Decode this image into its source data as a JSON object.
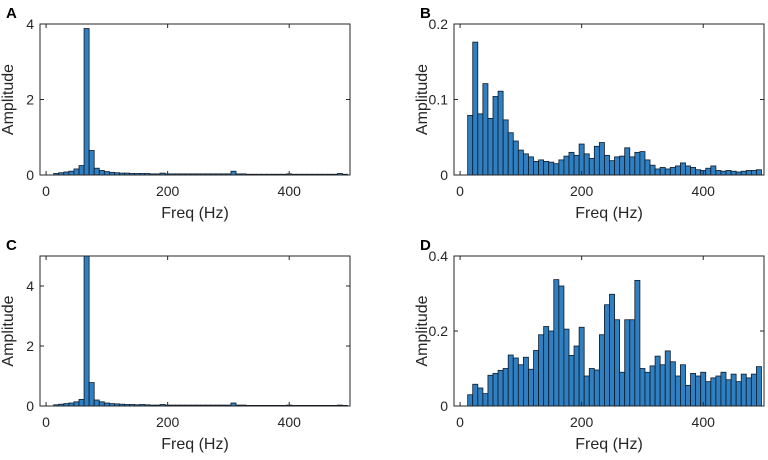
{
  "colors": {
    "bar_fill": "#2f7fc1",
    "bar_edge": "#0d1b2a",
    "axis": "#262626"
  },
  "chart_data": [
    {
      "panel": "A",
      "type": "bar",
      "xlabel": "Freq (Hz)",
      "ylabel": "Amplitude",
      "xlim": [
        -10,
        500
      ],
      "ylim": [
        0,
        4
      ],
      "xticks": [
        0,
        200,
        400
      ],
      "yticks": [
        0,
        2,
        4
      ],
      "bin_width": 8.33,
      "x": [
        16.67,
        25,
        33.33,
        41.67,
        50,
        58.33,
        66.67,
        75,
        83.33,
        91.67,
        100,
        108.33,
        116.67,
        125,
        133.33,
        141.67,
        150,
        158.33,
        166.67,
        175,
        183.33,
        191.67,
        200,
        208.33,
        216.67,
        225,
        233.33,
        241.67,
        250,
        258.33,
        266.67,
        275,
        283.33,
        291.67,
        300,
        308.33,
        316.67,
        325,
        333.33,
        341.67,
        350,
        358.33,
        366.67,
        375,
        383.33,
        391.67,
        400,
        408.33,
        416.67,
        425,
        433.33,
        441.67,
        450,
        458.33,
        466.67,
        475,
        483.33,
        491.67
      ],
      "values": [
        0.04,
        0.06,
        0.08,
        0.1,
        0.16,
        0.25,
        3.88,
        0.65,
        0.18,
        0.12,
        0.09,
        0.07,
        0.06,
        0.05,
        0.05,
        0.04,
        0.04,
        0.04,
        0.04,
        0.03,
        0.03,
        0.05,
        0.03,
        0.03,
        0.03,
        0.03,
        0.03,
        0.03,
        0.03,
        0.03,
        0.03,
        0.03,
        0.03,
        0.03,
        0.03,
        0.1,
        0.03,
        0.03,
        0.02,
        0.02,
        0.02,
        0.02,
        0.02,
        0.02,
        0.02,
        0.02,
        0.03,
        0.02,
        0.02,
        0.02,
        0.02,
        0.02,
        0.02,
        0.02,
        0.02,
        0.02,
        0.04,
        0.02
      ]
    },
    {
      "panel": "B",
      "type": "bar",
      "xlabel": "Freq (Hz)",
      "ylabel": "Amplitude",
      "xlim": [
        -10,
        500
      ],
      "ylim": [
        0,
        0.2
      ],
      "xticks": [
        0,
        200,
        400
      ],
      "yticks": [
        0,
        0.1,
        0.2
      ],
      "bin_width": 8.33,
      "x": [
        16.67,
        25,
        33.33,
        41.67,
        50,
        58.33,
        66.67,
        75,
        83.33,
        91.67,
        100,
        108.33,
        116.67,
        125,
        133.33,
        141.67,
        150,
        158.33,
        166.67,
        175,
        183.33,
        191.67,
        200,
        208.33,
        216.67,
        225,
        233.33,
        241.67,
        250,
        258.33,
        266.67,
        275,
        283.33,
        291.67,
        300,
        308.33,
        316.67,
        325,
        333.33,
        341.67,
        350,
        358.33,
        366.67,
        375,
        383.33,
        391.67,
        400,
        408.33,
        416.67,
        425,
        433.33,
        441.67,
        450,
        458.33,
        466.67,
        475,
        483.33,
        491.67
      ],
      "values": [
        0.079,
        0.176,
        0.081,
        0.121,
        0.075,
        0.104,
        0.111,
        0.073,
        0.056,
        0.045,
        0.033,
        0.028,
        0.024,
        0.018,
        0.02,
        0.018,
        0.017,
        0.015,
        0.02,
        0.025,
        0.03,
        0.026,
        0.041,
        0.028,
        0.022,
        0.038,
        0.043,
        0.026,
        0.019,
        0.024,
        0.025,
        0.036,
        0.024,
        0.03,
        0.031,
        0.02,
        0.013,
        0.008,
        0.01,
        0.008,
        0.01,
        0.012,
        0.016,
        0.012,
        0.01,
        0.007,
        0.006,
        0.009,
        0.012,
        0.006,
        0.005,
        0.006,
        0.005,
        0.004,
        0.005,
        0.006,
        0.006,
        0.007
      ]
    },
    {
      "panel": "C",
      "type": "bar",
      "xlabel": "Freq (Hz)",
      "ylabel": "Amplitude",
      "xlim": [
        -10,
        500
      ],
      "ylim": [
        0,
        5
      ],
      "xticks": [
        0,
        200,
        400
      ],
      "yticks": [
        0,
        2,
        4
      ],
      "bin_width": 8.33,
      "x": [
        16.67,
        25,
        33.33,
        41.67,
        50,
        58.33,
        66.67,
        75,
        83.33,
        91.67,
        100,
        108.33,
        116.67,
        125,
        133.33,
        141.67,
        150,
        158.33,
        166.67,
        175,
        183.33,
        191.67,
        200,
        208.33,
        216.67,
        225,
        233.33,
        241.67,
        250,
        258.33,
        266.67,
        275,
        283.33,
        291.67,
        300,
        308.33,
        316.67,
        325,
        333.33,
        341.67,
        350,
        358.33,
        366.67,
        375,
        383.33,
        391.67,
        400,
        408.33,
        416.67,
        425,
        433.33,
        441.67,
        450,
        458.33,
        466.67,
        475,
        483.33,
        491.67
      ],
      "values": [
        0.04,
        0.06,
        0.08,
        0.1,
        0.14,
        0.22,
        5.0,
        0.78,
        0.2,
        0.14,
        0.1,
        0.08,
        0.07,
        0.06,
        0.05,
        0.05,
        0.04,
        0.05,
        0.04,
        0.03,
        0.03,
        0.05,
        0.03,
        0.03,
        0.03,
        0.03,
        0.03,
        0.03,
        0.03,
        0.03,
        0.03,
        0.03,
        0.03,
        0.03,
        0.03,
        0.1,
        0.03,
        0.03,
        0.02,
        0.02,
        0.02,
        0.02,
        0.02,
        0.02,
        0.02,
        0.02,
        0.03,
        0.02,
        0.02,
        0.02,
        0.02,
        0.02,
        0.02,
        0.02,
        0.02,
        0.02,
        0.03,
        0.02
      ]
    },
    {
      "panel": "D",
      "type": "bar",
      "xlabel": "Freq (Hz)",
      "ylabel": "Amplitude",
      "xlim": [
        -10,
        500
      ],
      "ylim": [
        0,
        0.4
      ],
      "xticks": [
        0,
        200,
        400
      ],
      "yticks": [
        0,
        0.2,
        0.4
      ],
      "bin_width": 8.33,
      "x": [
        16.67,
        25,
        33.33,
        41.67,
        50,
        58.33,
        66.67,
        75,
        83.33,
        91.67,
        100,
        108.33,
        116.67,
        125,
        133.33,
        141.67,
        150,
        158.33,
        166.67,
        175,
        183.33,
        191.67,
        200,
        208.33,
        216.67,
        225,
        233.33,
        241.67,
        250,
        258.33,
        266.67,
        275,
        283.33,
        291.67,
        300,
        308.33,
        316.67,
        325,
        333.33,
        341.67,
        350,
        358.33,
        366.67,
        375,
        383.33,
        391.67,
        400,
        408.33,
        416.67,
        425,
        433.33,
        441.67,
        450,
        458.33,
        466.67,
        475,
        483.33,
        491.67
      ],
      "values": [
        0.03,
        0.058,
        0.048,
        0.033,
        0.082,
        0.087,
        0.095,
        0.1,
        0.136,
        0.128,
        0.11,
        0.13,
        0.098,
        0.148,
        0.19,
        0.212,
        0.2,
        0.337,
        0.32,
        0.205,
        0.135,
        0.16,
        0.21,
        0.08,
        0.1,
        0.096,
        0.19,
        0.27,
        0.298,
        0.23,
        0.09,
        0.23,
        0.23,
        0.335,
        0.1,
        0.09,
        0.107,
        0.133,
        0.11,
        0.147,
        0.118,
        0.08,
        0.11,
        0.055,
        0.087,
        0.08,
        0.09,
        0.065,
        0.075,
        0.08,
        0.09,
        0.07,
        0.085,
        0.065,
        0.085,
        0.075,
        0.085,
        0.105
      ]
    }
  ]
}
